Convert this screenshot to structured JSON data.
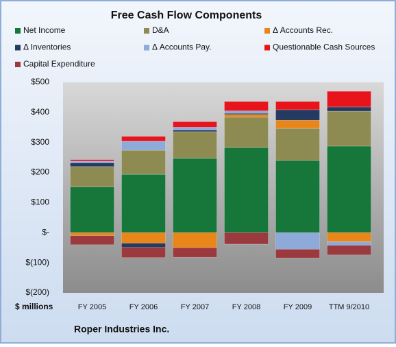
{
  "chart_data": {
    "type": "stacked_bar",
    "title": "Free Cash Flow Components",
    "xlabel": "$ millions",
    "footnote": "Roper Industries Inc.",
    "categories": [
      "FY 2005",
      "FY 2006",
      "FY 2007",
      "FY 2008",
      "FY 2009",
      "TTM 9/2010"
    ],
    "series": [
      {
        "name": "Net Income",
        "color": "#17763a",
        "values": [
          152,
          194,
          247,
          283,
          240,
          288
        ]
      },
      {
        "name": "D&A",
        "color": "#8e8b52",
        "values": [
          68,
          80,
          89,
          101,
          107,
          116
        ]
      },
      {
        "name": "Δ Accounts Rec.",
        "color": "#e8861a",
        "values": [
          -10,
          -35,
          -50,
          9,
          27,
          -30
        ]
      },
      {
        "name": "Δ Inventories",
        "color": "#243a60",
        "values": [
          12,
          -14,
          5,
          4,
          35,
          14
        ]
      },
      {
        "name": "Δ Accounts Pay.",
        "color": "#8eaad8",
        "values": [
          6,
          30,
          10,
          8,
          -55,
          -12
        ]
      },
      {
        "name": "Questionable Cash Sources",
        "color": "#e8141c",
        "values": [
          5,
          16,
          18,
          31,
          27,
          52
        ]
      },
      {
        "name": "Capital Expenditure",
        "color": "#9a3a3e",
        "values": [
          -30,
          -34,
          -32,
          -38,
          -29,
          -32
        ]
      }
    ],
    "ylim": [
      -200,
      500
    ],
    "yticks": [
      {
        "value": -200,
        "label": "$(200)"
      },
      {
        "value": -100,
        "label": "$(100)"
      },
      {
        "value": 0,
        "label": "$-"
      },
      {
        "value": 100,
        "label": "$100"
      },
      {
        "value": 200,
        "label": "$200"
      },
      {
        "value": 300,
        "label": "$300"
      },
      {
        "value": 400,
        "label": "$400"
      },
      {
        "value": 500,
        "label": "$500"
      }
    ],
    "legend": "top"
  }
}
